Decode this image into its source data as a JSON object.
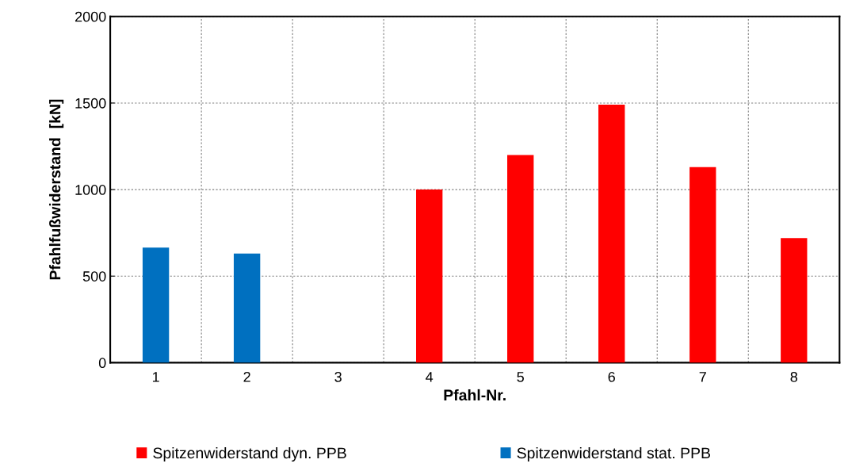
{
  "chart_data": {
    "type": "bar",
    "xlabel": "Pfahl-Nr.",
    "ylabel": "Pfahlfußwiderstand  [kN]",
    "categories": [
      "1",
      "2",
      "3",
      "4",
      "5",
      "6",
      "7",
      "8"
    ],
    "series": [
      {
        "name": "Spitzenwiderstand dyn. PPB",
        "color": "#ff0000",
        "values": [
          null,
          null,
          null,
          1000,
          1200,
          1490,
          1130,
          720
        ]
      },
      {
        "name": "Spitzenwiderstand stat. PPB",
        "color": "#0070c0",
        "values": [
          665,
          630,
          null,
          null,
          null,
          null,
          null,
          null
        ]
      }
    ],
    "ylim": [
      0,
      2000
    ],
    "yticks": [
      0,
      500,
      1000,
      1500,
      2000
    ],
    "grid": true,
    "legend": "bottom"
  }
}
